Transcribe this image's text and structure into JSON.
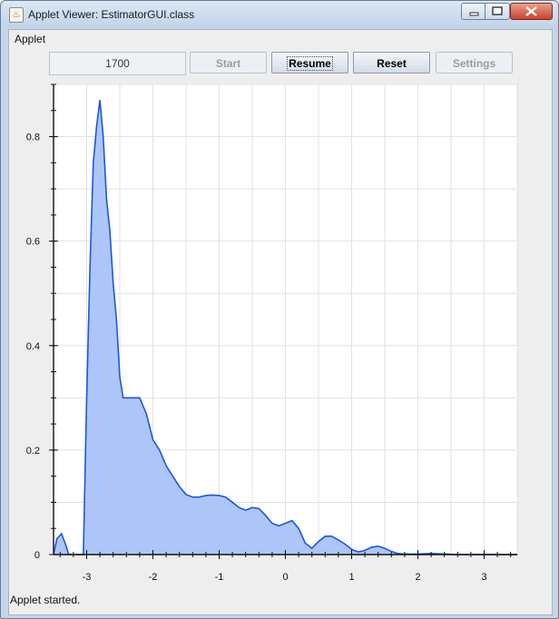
{
  "window": {
    "title": "Applet Viewer: EstimatorGUI.class"
  },
  "menu": {
    "applet": "Applet"
  },
  "toolbar": {
    "counter_value": "1700",
    "start_label": "Start",
    "resume_label": "Resume",
    "reset_label": "Reset",
    "settings_label": "Settings"
  },
  "status": {
    "text": "Applet started."
  },
  "icons": [
    "java-icon",
    "minimize-icon",
    "maximize-icon",
    "close-icon"
  ],
  "colors": {
    "fill": "#adc5f8",
    "line": "#1f57d6",
    "grid": "#e2e2e2"
  },
  "chart_data": {
    "type": "area",
    "title": "",
    "xlabel": "",
    "ylabel": "",
    "xlim": [
      -3.5,
      3.5
    ],
    "ylim": [
      0,
      0.9
    ],
    "xticks": [
      "-3",
      "-2",
      "-1",
      "0",
      "1",
      "2",
      "3"
    ],
    "yticks": [
      "0",
      "0.2",
      "0.4",
      "0.6",
      "0.8"
    ],
    "grid": true,
    "legend": "none",
    "x": [
      -3.5,
      -3.45,
      -3.38,
      -3.32,
      -3.27,
      -3.2,
      -3.1,
      -3.05,
      -3.0,
      -2.95,
      -2.9,
      -2.85,
      -2.8,
      -2.75,
      -2.7,
      -2.65,
      -2.6,
      -2.55,
      -2.5,
      -2.45,
      -2.4,
      -2.3,
      -2.2,
      -2.1,
      -2.0,
      -1.9,
      -1.8,
      -1.7,
      -1.6,
      -1.5,
      -1.4,
      -1.3,
      -1.2,
      -1.1,
      -1.0,
      -0.9,
      -0.8,
      -0.7,
      -0.6,
      -0.5,
      -0.4,
      -0.3,
      -0.2,
      -0.1,
      0.0,
      0.1,
      0.2,
      0.3,
      0.4,
      0.5,
      0.6,
      0.7,
      0.8,
      0.9,
      1.0,
      1.1,
      1.2,
      1.3,
      1.4,
      1.5,
      1.6,
      1.7,
      1.8,
      1.9,
      2.0,
      2.2,
      2.4,
      2.6,
      2.8,
      3.0,
      3.2,
      3.5
    ],
    "y": [
      0.0,
      0.03,
      0.04,
      0.02,
      0.0,
      0.0,
      0.0,
      0.0,
      0.3,
      0.55,
      0.75,
      0.82,
      0.87,
      0.8,
      0.68,
      0.62,
      0.52,
      0.45,
      0.34,
      0.3,
      0.3,
      0.3,
      0.3,
      0.27,
      0.22,
      0.2,
      0.17,
      0.15,
      0.13,
      0.115,
      0.11,
      0.11,
      0.113,
      0.114,
      0.113,
      0.11,
      0.1,
      0.09,
      0.085,
      0.09,
      0.088,
      0.075,
      0.06,
      0.055,
      0.06,
      0.065,
      0.05,
      0.022,
      0.012,
      0.025,
      0.035,
      0.035,
      0.028,
      0.02,
      0.01,
      0.005,
      0.008,
      0.014,
      0.016,
      0.012,
      0.006,
      0.002,
      0.001,
      0.001,
      0.001,
      0.002,
      0.001,
      0.0,
      0.0,
      0.0,
      0.0,
      0.0
    ]
  }
}
